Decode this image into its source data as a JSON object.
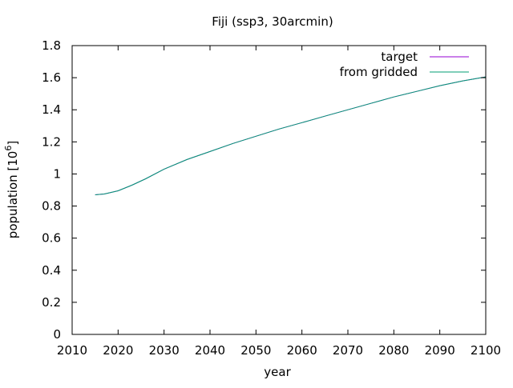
{
  "chart_data": {
    "type": "line",
    "title": "Fiji (ssp3, 30arcmin)",
    "xlabel": "year",
    "ylabel_text": "population [10",
    "ylabel_sup": "6",
    "ylabel_close": "]",
    "xlim": [
      2010,
      2100
    ],
    "ylim": [
      0,
      1.8
    ],
    "xticks": [
      2010,
      2020,
      2030,
      2040,
      2050,
      2060,
      2070,
      2080,
      2090,
      2100
    ],
    "xtick_labels": [
      "2010",
      "2020",
      "2030",
      "2040",
      "2050",
      "2060",
      "2070",
      "2080",
      "2090",
      "2100"
    ],
    "yticks": [
      0,
      0.2,
      0.4,
      0.6,
      0.8,
      1,
      1.2,
      1.4,
      1.6,
      1.8
    ],
    "ytick_labels": [
      "0",
      "0.2",
      "0.4",
      "0.6",
      "0.8",
      "1",
      "1.2",
      "1.4",
      "1.6",
      "1.8"
    ],
    "grid": false,
    "legend_position": "top-right",
    "series": [
      {
        "name": "target",
        "color": "#9400d3",
        "x": [
          2015,
          2017,
          2020,
          2023,
          2026,
          2030,
          2035,
          2040,
          2045,
          2050,
          2055,
          2060,
          2065,
          2070,
          2075,
          2080,
          2085,
          2090,
          2095,
          2100
        ],
        "y": [
          0.87,
          0.875,
          0.895,
          0.93,
          0.97,
          1.03,
          1.09,
          1.14,
          1.19,
          1.235,
          1.28,
          1.32,
          1.36,
          1.4,
          1.44,
          1.48,
          1.515,
          1.55,
          1.58,
          1.605
        ]
      },
      {
        "name": "from gridded",
        "color": "#009e73",
        "x": [
          2015,
          2017,
          2020,
          2023,
          2026,
          2030,
          2035,
          2040,
          2045,
          2050,
          2055,
          2060,
          2065,
          2070,
          2075,
          2080,
          2085,
          2090,
          2095,
          2100
        ],
        "y": [
          0.87,
          0.875,
          0.895,
          0.93,
          0.97,
          1.03,
          1.09,
          1.14,
          1.19,
          1.235,
          1.28,
          1.32,
          1.36,
          1.4,
          1.44,
          1.48,
          1.515,
          1.55,
          1.58,
          1.605
        ]
      }
    ]
  }
}
